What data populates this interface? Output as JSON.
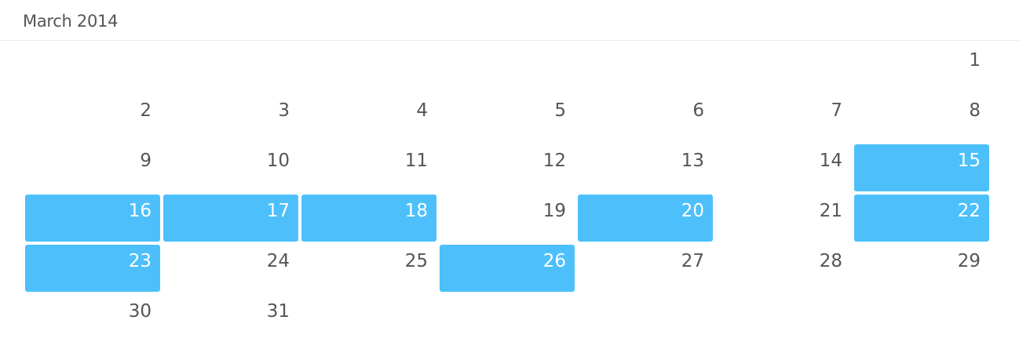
{
  "header": {
    "title": "March 2014"
  },
  "calendar": {
    "weeks": [
      [
        null,
        null,
        null,
        null,
        null,
        null,
        "1"
      ],
      [
        "2",
        "3",
        "4",
        "5",
        "6",
        "7",
        "8"
      ],
      [
        "9",
        "10",
        "11",
        "12",
        "13",
        "14",
        "15"
      ],
      [
        "16",
        "17",
        "18",
        "19",
        "20",
        "21",
        "22"
      ],
      [
        "23",
        "24",
        "25",
        "26",
        "27",
        "28",
        "29"
      ],
      [
        "30",
        "31",
        null,
        null,
        null,
        null,
        null
      ]
    ],
    "selected_days": [
      "15",
      "16",
      "17",
      "18",
      "20",
      "22",
      "23",
      "26"
    ],
    "colors": {
      "selected_background": "#4dc0fb",
      "selected_text": "#ffffff",
      "text": "#555555"
    }
  }
}
